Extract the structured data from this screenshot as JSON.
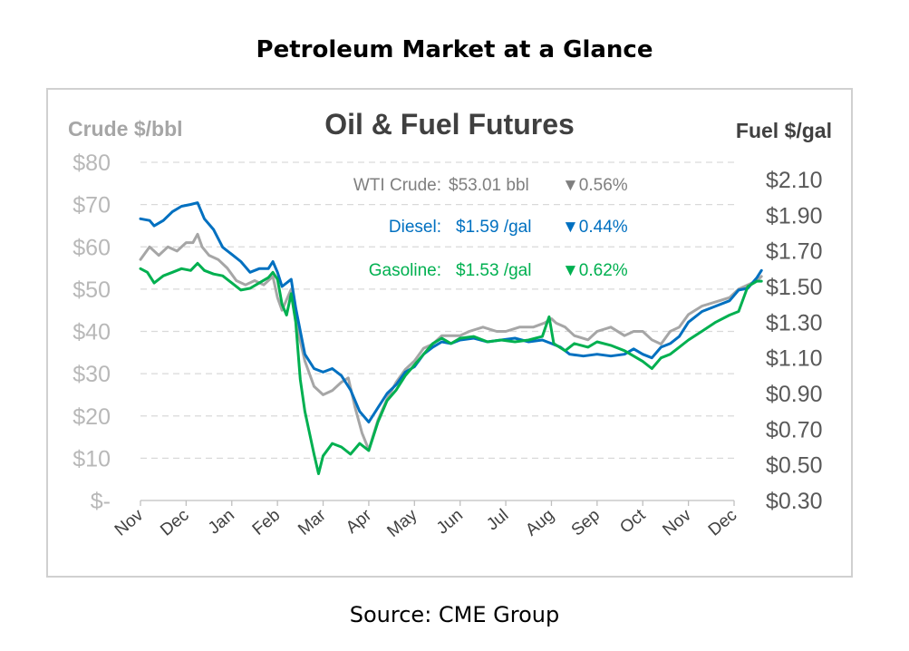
{
  "page": {
    "title": "Petroleum Market at a Glance",
    "source": "Source: CME Group"
  },
  "chart_data": {
    "type": "line",
    "title": "Oil & Fuel Futures",
    "left_axis": {
      "label": "Crude $/bbl",
      "range": [
        0,
        80
      ],
      "ticks": [
        "$-",
        "$10",
        "$20",
        "$30",
        "$40",
        "$50",
        "$60",
        "$70",
        "$80"
      ]
    },
    "right_axis": {
      "label": "Fuel $/gal",
      "range": [
        0.3,
        2.1
      ],
      "ticks": [
        "$0.30",
        "$0.50",
        "$0.70",
        "$0.90",
        "$1.10",
        "$1.30",
        "$1.50",
        "$1.70",
        "$1.90",
        "$2.10"
      ]
    },
    "x_axis": {
      "range": [
        0,
        13
      ],
      "months": [
        "Nov",
        "Dec",
        "Jan",
        "Feb",
        "Mar",
        "Apr",
        "May",
        "Jun",
        "Jul",
        "Aug",
        "Sep",
        "Oct",
        "Nov",
        "Dec"
      ]
    },
    "grid": "horizontal dashed",
    "annotations": [
      {
        "label": "WTI Crude:",
        "value": "$53.01 bbl",
        "change": "▼0.56%",
        "color": "#7f7f7f"
      },
      {
        "label": "Diesel:",
        "value": "$1.59 /gal",
        "change": "▼0.44%",
        "color": "#0070c0"
      },
      {
        "label": "Gasoline:",
        "value": "$1.53 /gal",
        "change": "▼0.62%",
        "color": "#00b050"
      }
    ],
    "series": [
      {
        "name": "WTI Crude",
        "axis": "left",
        "color": "#a6a6a6",
        "points": [
          [
            0,
            57
          ],
          [
            0.2,
            60
          ],
          [
            0.4,
            58
          ],
          [
            0.6,
            60
          ],
          [
            0.8,
            59
          ],
          [
            1.0,
            61
          ],
          [
            1.15,
            61
          ],
          [
            1.25,
            63
          ],
          [
            1.35,
            60
          ],
          [
            1.5,
            58
          ],
          [
            1.7,
            57
          ],
          [
            1.9,
            55
          ],
          [
            2.1,
            52
          ],
          [
            2.3,
            51
          ],
          [
            2.5,
            52
          ],
          [
            2.7,
            51
          ],
          [
            2.9,
            53
          ],
          [
            3.0,
            48
          ],
          [
            3.1,
            45
          ],
          [
            3.3,
            50
          ],
          [
            3.45,
            40
          ],
          [
            3.6,
            33
          ],
          [
            3.8,
            27
          ],
          [
            4.0,
            25
          ],
          [
            4.2,
            26
          ],
          [
            4.4,
            28
          ],
          [
            4.55,
            29
          ],
          [
            4.7,
            22
          ],
          [
            4.85,
            16
          ],
          [
            5.0,
            12
          ],
          [
            5.2,
            19
          ],
          [
            5.4,
            24
          ],
          [
            5.6,
            28
          ],
          [
            5.8,
            31
          ],
          [
            6.0,
            33
          ],
          [
            6.2,
            36
          ],
          [
            6.4,
            37
          ],
          [
            6.6,
            39
          ],
          [
            6.8,
            39
          ],
          [
            7.0,
            39
          ],
          [
            7.2,
            40
          ],
          [
            7.5,
            41
          ],
          [
            7.8,
            40
          ],
          [
            8.0,
            40
          ],
          [
            8.3,
            41
          ],
          [
            8.6,
            41
          ],
          [
            8.85,
            42
          ],
          [
            9.0,
            43
          ],
          [
            9.1,
            42
          ],
          [
            9.3,
            41
          ],
          [
            9.5,
            39
          ],
          [
            9.8,
            38
          ],
          [
            10.0,
            40
          ],
          [
            10.3,
            41
          ],
          [
            10.6,
            39
          ],
          [
            10.8,
            40
          ],
          [
            11.0,
            40
          ],
          [
            11.2,
            38
          ],
          [
            11.4,
            37
          ],
          [
            11.6,
            40
          ],
          [
            11.8,
            41
          ],
          [
            12.0,
            44
          ],
          [
            12.3,
            46
          ],
          [
            12.6,
            47
          ],
          [
            12.9,
            48
          ],
          [
            13.1,
            50
          ],
          [
            13.3,
            51
          ],
          [
            13.5,
            52
          ],
          [
            13.6,
            53
          ]
        ]
      },
      {
        "name": "Diesel",
        "axis": "right",
        "color": "#0070c0",
        "points": [
          [
            0,
            1.88
          ],
          [
            0.2,
            1.87
          ],
          [
            0.3,
            1.84
          ],
          [
            0.5,
            1.87
          ],
          [
            0.7,
            1.92
          ],
          [
            0.9,
            1.95
          ],
          [
            1.1,
            1.96
          ],
          [
            1.25,
            1.97
          ],
          [
            1.4,
            1.88
          ],
          [
            1.6,
            1.82
          ],
          [
            1.8,
            1.72
          ],
          [
            2.0,
            1.68
          ],
          [
            2.2,
            1.64
          ],
          [
            2.4,
            1.58
          ],
          [
            2.6,
            1.6
          ],
          [
            2.8,
            1.6
          ],
          [
            2.9,
            1.64
          ],
          [
            3.0,
            1.58
          ],
          [
            3.1,
            1.5
          ],
          [
            3.3,
            1.54
          ],
          [
            3.4,
            1.38
          ],
          [
            3.6,
            1.12
          ],
          [
            3.8,
            1.04
          ],
          [
            4.0,
            1.02
          ],
          [
            4.2,
            1.04
          ],
          [
            4.4,
            1.0
          ],
          [
            4.6,
            0.92
          ],
          [
            4.8,
            0.8
          ],
          [
            5.0,
            0.74
          ],
          [
            5.2,
            0.82
          ],
          [
            5.4,
            0.9
          ],
          [
            5.6,
            0.95
          ],
          [
            5.8,
            1.02
          ],
          [
            6.0,
            1.05
          ],
          [
            6.2,
            1.12
          ],
          [
            6.4,
            1.16
          ],
          [
            6.6,
            1.19
          ],
          [
            6.8,
            1.18
          ],
          [
            7.0,
            1.2
          ],
          [
            7.3,
            1.21
          ],
          [
            7.6,
            1.19
          ],
          [
            7.9,
            1.2
          ],
          [
            8.2,
            1.21
          ],
          [
            8.5,
            1.19
          ],
          [
            8.8,
            1.2
          ],
          [
            9.0,
            1.18
          ],
          [
            9.2,
            1.16
          ],
          [
            9.4,
            1.12
          ],
          [
            9.7,
            1.11
          ],
          [
            10.0,
            1.12
          ],
          [
            10.3,
            1.11
          ],
          [
            10.6,
            1.12
          ],
          [
            10.8,
            1.15
          ],
          [
            11.0,
            1.12
          ],
          [
            11.2,
            1.1
          ],
          [
            11.4,
            1.16
          ],
          [
            11.6,
            1.18
          ],
          [
            11.8,
            1.22
          ],
          [
            12.0,
            1.3
          ],
          [
            12.3,
            1.36
          ],
          [
            12.6,
            1.39
          ],
          [
            12.9,
            1.42
          ],
          [
            13.1,
            1.48
          ],
          [
            13.3,
            1.49
          ],
          [
            13.5,
            1.55
          ],
          [
            13.6,
            1.59
          ]
        ]
      },
      {
        "name": "Gasoline",
        "axis": "right",
        "color": "#00b050",
        "points": [
          [
            0,
            1.6
          ],
          [
            0.15,
            1.58
          ],
          [
            0.3,
            1.52
          ],
          [
            0.5,
            1.56
          ],
          [
            0.7,
            1.58
          ],
          [
            0.9,
            1.6
          ],
          [
            1.1,
            1.59
          ],
          [
            1.25,
            1.63
          ],
          [
            1.4,
            1.59
          ],
          [
            1.6,
            1.57
          ],
          [
            1.8,
            1.56
          ],
          [
            2.0,
            1.52
          ],
          [
            2.2,
            1.48
          ],
          [
            2.4,
            1.49
          ],
          [
            2.6,
            1.52
          ],
          [
            2.8,
            1.55
          ],
          [
            2.9,
            1.58
          ],
          [
            3.0,
            1.54
          ],
          [
            3.1,
            1.4
          ],
          [
            3.2,
            1.34
          ],
          [
            3.3,
            1.46
          ],
          [
            3.4,
            1.3
          ],
          [
            3.5,
            0.98
          ],
          [
            3.6,
            0.8
          ],
          [
            3.8,
            0.56
          ],
          [
            3.9,
            0.45
          ],
          [
            4.0,
            0.55
          ],
          [
            4.2,
            0.62
          ],
          [
            4.4,
            0.6
          ],
          [
            4.6,
            0.56
          ],
          [
            4.8,
            0.62
          ],
          [
            5.0,
            0.58
          ],
          [
            5.2,
            0.74
          ],
          [
            5.4,
            0.86
          ],
          [
            5.6,
            0.92
          ],
          [
            5.8,
            1.0
          ],
          [
            6.0,
            1.06
          ],
          [
            6.2,
            1.12
          ],
          [
            6.4,
            1.18
          ],
          [
            6.6,
            1.21
          ],
          [
            6.8,
            1.18
          ],
          [
            7.0,
            1.21
          ],
          [
            7.3,
            1.22
          ],
          [
            7.6,
            1.19
          ],
          [
            7.9,
            1.2
          ],
          [
            8.2,
            1.19
          ],
          [
            8.5,
            1.2
          ],
          [
            8.8,
            1.22
          ],
          [
            8.95,
            1.33
          ],
          [
            9.05,
            1.18
          ],
          [
            9.3,
            1.14
          ],
          [
            9.5,
            1.18
          ],
          [
            9.8,
            1.16
          ],
          [
            10.0,
            1.19
          ],
          [
            10.3,
            1.17
          ],
          [
            10.6,
            1.14
          ],
          [
            10.8,
            1.11
          ],
          [
            11.0,
            1.08
          ],
          [
            11.2,
            1.04
          ],
          [
            11.4,
            1.1
          ],
          [
            11.6,
            1.12
          ],
          [
            11.8,
            1.16
          ],
          [
            12.0,
            1.2
          ],
          [
            12.3,
            1.25
          ],
          [
            12.6,
            1.3
          ],
          [
            12.9,
            1.34
          ],
          [
            13.1,
            1.36
          ],
          [
            13.3,
            1.5
          ],
          [
            13.5,
            1.53
          ],
          [
            13.6,
            1.53
          ]
        ]
      }
    ]
  }
}
